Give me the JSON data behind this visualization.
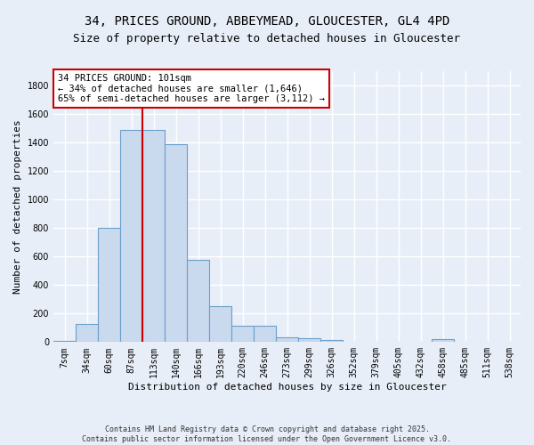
{
  "title_line1": "34, PRICES GROUND, ABBEYMEAD, GLOUCESTER, GL4 4PD",
  "title_line2": "Size of property relative to detached houses in Gloucester",
  "xlabel": "Distribution of detached houses by size in Gloucester",
  "ylabel": "Number of detached properties",
  "bar_color": "#c9d9ee",
  "bar_edge_color": "#6a9fcb",
  "bg_color": "#e8eef8",
  "grid_color": "#ffffff",
  "annotation_box_color": "#ffffff",
  "annotation_box_edge": "#cc0000",
  "vline_color": "#cc0000",
  "categories": [
    "7sqm",
    "34sqm",
    "60sqm",
    "87sqm",
    "113sqm",
    "140sqm",
    "166sqm",
    "193sqm",
    "220sqm",
    "246sqm",
    "273sqm",
    "299sqm",
    "326sqm",
    "352sqm",
    "379sqm",
    "405sqm",
    "432sqm",
    "458sqm",
    "485sqm",
    "511sqm",
    "538sqm"
  ],
  "values": [
    10,
    130,
    800,
    1490,
    1490,
    1390,
    575,
    250,
    115,
    115,
    35,
    25,
    15,
    5,
    5,
    0,
    0,
    20,
    0,
    0,
    0
  ],
  "ylim": [
    0,
    1900
  ],
  "yticks": [
    0,
    200,
    400,
    600,
    800,
    1000,
    1200,
    1400,
    1600,
    1800
  ],
  "vline_position": 3.5,
  "annotation_text": "34 PRICES GROUND: 101sqm\n← 34% of detached houses are smaller (1,646)\n65% of semi-detached houses are larger (3,112) →",
  "footer_line1": "Contains HM Land Registry data © Crown copyright and database right 2025.",
  "footer_line2": "Contains public sector information licensed under the Open Government Licence v3.0.",
  "title_fontsize": 10,
  "title2_fontsize": 9,
  "label_fontsize": 8,
  "tick_fontsize": 7,
  "annotation_fontsize": 7.5,
  "footer_fontsize": 6
}
